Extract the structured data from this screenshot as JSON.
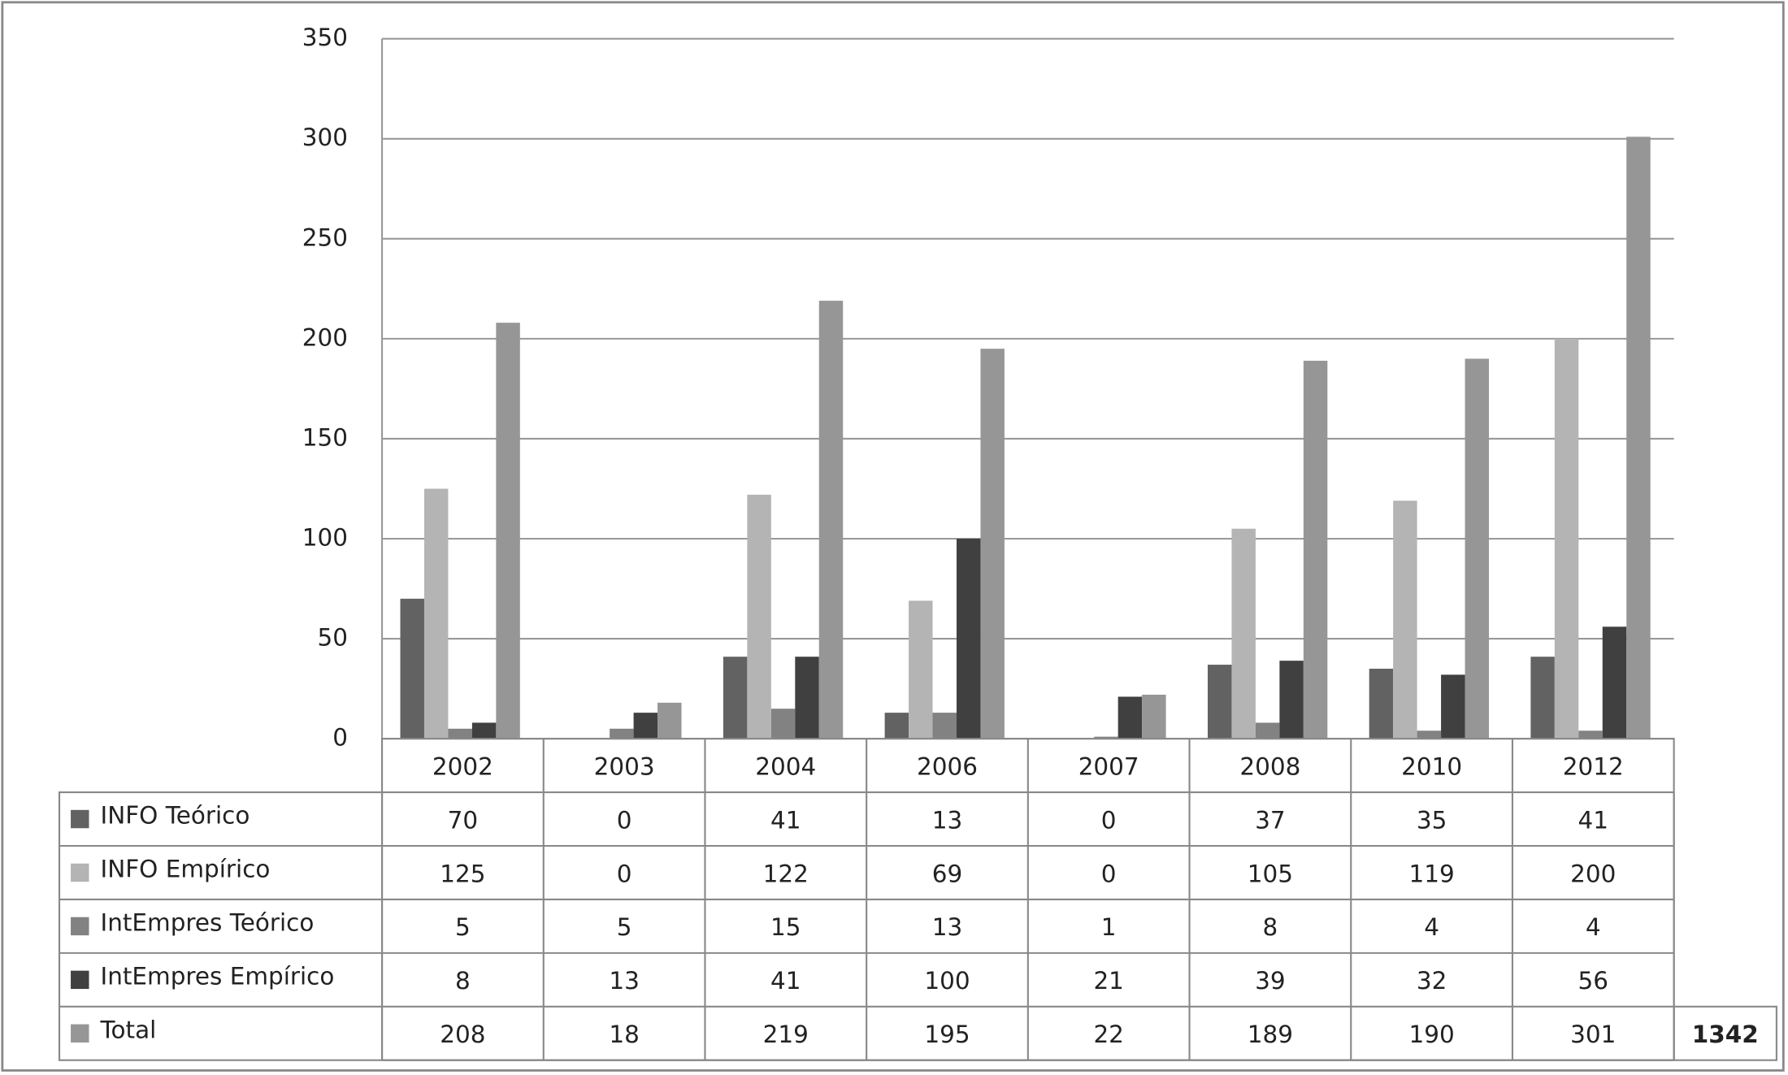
{
  "chart_data": {
    "type": "bar",
    "categories": [
      "2002",
      "2003",
      "2004",
      "2006",
      "2007",
      "2008",
      "2010",
      "2012"
    ],
    "series": [
      {
        "name": "INFO Teórico",
        "color": "#626262",
        "values": [
          70,
          0,
          41,
          13,
          0,
          37,
          35,
          41
        ]
      },
      {
        "name": "INFO Empírico",
        "color": "#b4b4b4",
        "values": [
          125,
          0,
          122,
          69,
          0,
          105,
          119,
          200
        ]
      },
      {
        "name": "IntEmpres Teórico",
        "color": "#828282",
        "values": [
          5,
          5,
          15,
          13,
          1,
          8,
          4,
          4
        ]
      },
      {
        "name": "IntEmpres Empírico",
        "color": "#404040",
        "values": [
          8,
          13,
          41,
          100,
          21,
          39,
          32,
          56
        ]
      },
      {
        "name": "Total",
        "color": "#969696",
        "values": [
          208,
          18,
          219,
          195,
          22,
          189,
          190,
          301
        ]
      }
    ],
    "grand_total": 1342,
    "ylim": [
      0,
      350
    ],
    "yticks": [
      0,
      50,
      100,
      150,
      200,
      250,
      300,
      350
    ],
    "grid": true
  }
}
